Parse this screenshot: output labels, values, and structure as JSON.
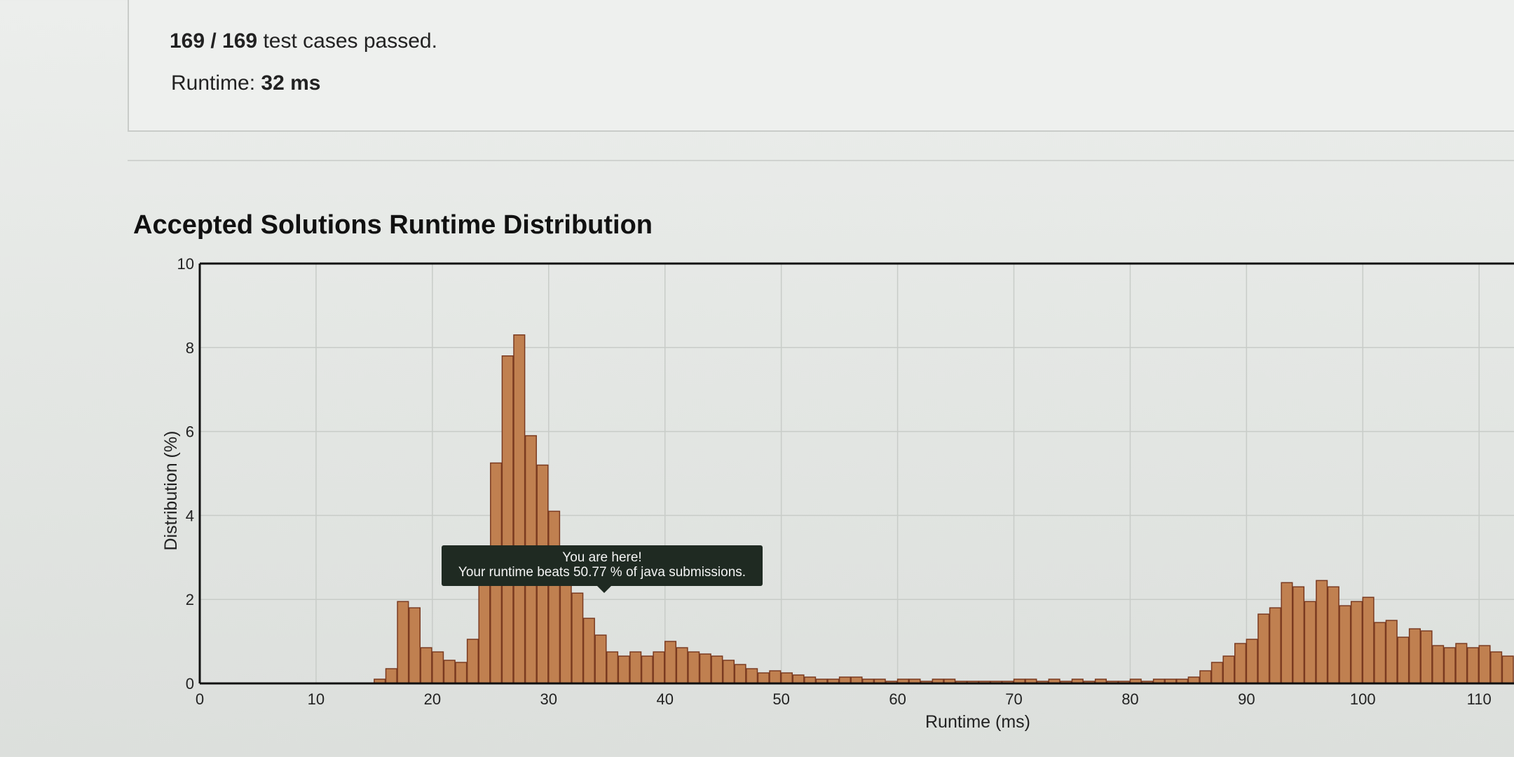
{
  "result": {
    "passed": "169 / 169",
    "passed_suffix": " test cases passed.",
    "runtime_label": "Runtime: ",
    "runtime_value": "32 ms"
  },
  "tooltip": {
    "line1": "You are here!",
    "line2": "Your runtime beats 50.77 % of java submissions."
  },
  "colors": {
    "bar_fill": "#c08050",
    "bar_stroke": "#7a3a20",
    "grid": "#c8ccc8",
    "axis": "#111111"
  },
  "chart_data": {
    "type": "bar",
    "title": "Accepted Solutions Runtime Distribution",
    "xlabel": "Runtime (ms)",
    "ylabel": "Distribution (%)",
    "xlim": [
      0,
      113
    ],
    "ylim": [
      0,
      10
    ],
    "xticks": [
      0,
      10,
      20,
      30,
      40,
      50,
      60,
      70,
      80,
      90,
      100,
      110
    ],
    "yticks": [
      0,
      2,
      4,
      6,
      8,
      10
    ],
    "bin_width": 1,
    "grid": true,
    "highlight_runtime": 32,
    "x": [
      15,
      16,
      17,
      18,
      19,
      20,
      21,
      22,
      23,
      24,
      25,
      26,
      27,
      28,
      29,
      30,
      31,
      32,
      33,
      34,
      35,
      36,
      37,
      38,
      39,
      40,
      41,
      42,
      43,
      44,
      45,
      46,
      47,
      48,
      49,
      50,
      51,
      52,
      53,
      54,
      55,
      56,
      57,
      58,
      59,
      60,
      61,
      62,
      63,
      64,
      65,
      66,
      67,
      68,
      69,
      70,
      71,
      72,
      73,
      74,
      75,
      76,
      77,
      78,
      79,
      80,
      81,
      82,
      83,
      84,
      85,
      86,
      87,
      88,
      89,
      90,
      91,
      92,
      93,
      94,
      95,
      96,
      97,
      98,
      99,
      100,
      101,
      102,
      103,
      104,
      105,
      106,
      107,
      108,
      109,
      110,
      111,
      112
    ],
    "values": [
      0.1,
      0.35,
      1.95,
      1.8,
      0.85,
      0.75,
      0.55,
      0.5,
      1.05,
      3.1,
      5.25,
      7.8,
      8.3,
      5.9,
      5.2,
      4.1,
      2.85,
      2.15,
      1.55,
      1.15,
      0.75,
      0.65,
      0.75,
      0.65,
      0.75,
      1.0,
      0.85,
      0.75,
      0.7,
      0.65,
      0.55,
      0.45,
      0.35,
      0.25,
      0.3,
      0.25,
      0.2,
      0.15,
      0.1,
      0.1,
      0.15,
      0.15,
      0.1,
      0.1,
      0.05,
      0.1,
      0.1,
      0.05,
      0.1,
      0.1,
      0.05,
      0.05,
      0.05,
      0.05,
      0.05,
      0.1,
      0.1,
      0.05,
      0.1,
      0.05,
      0.1,
      0.05,
      0.1,
      0.05,
      0.05,
      0.1,
      0.05,
      0.1,
      0.1,
      0.1,
      0.15,
      0.3,
      0.5,
      0.65,
      0.95,
      1.05,
      1.65,
      1.8,
      2.4,
      2.3,
      1.95,
      2.45,
      2.3,
      1.85,
      1.95,
      2.05,
      1.45,
      1.5,
      1.1,
      1.3,
      1.25,
      0.9,
      0.85,
      0.95,
      0.85,
      0.9,
      0.75,
      0.65
    ]
  }
}
